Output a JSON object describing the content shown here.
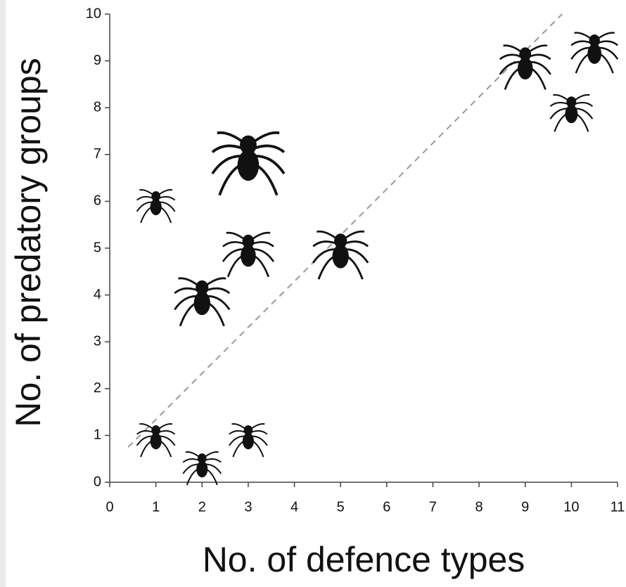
{
  "chart_data": {
    "type": "scatter",
    "x_label": "No. of defence types",
    "y_label": "No. of predatory groups",
    "series": [
      {
        "color": "#111111",
        "x": [
          1,
          2,
          3,
          1,
          2,
          3,
          3,
          5,
          9,
          10.5,
          10
        ],
        "values": [
          1,
          0.4,
          1,
          6,
          4,
          7,
          5,
          5,
          9,
          9.3,
          8
        ]
      }
    ],
    "trend_line": {
      "x": [
        0.4,
        9.8
      ],
      "y": [
        0.75,
        10
      ],
      "color": "#999999"
    },
    "xlim": [
      0,
      11
    ],
    "xticks": [
      0,
      1,
      2,
      3,
      4,
      5,
      6,
      7,
      8,
      9,
      10,
      11
    ],
    "ylim": [
      0,
      10
    ],
    "yticks": [
      0,
      1,
      2,
      3,
      4,
      5,
      6,
      7,
      8,
      9,
      10
    ]
  }
}
